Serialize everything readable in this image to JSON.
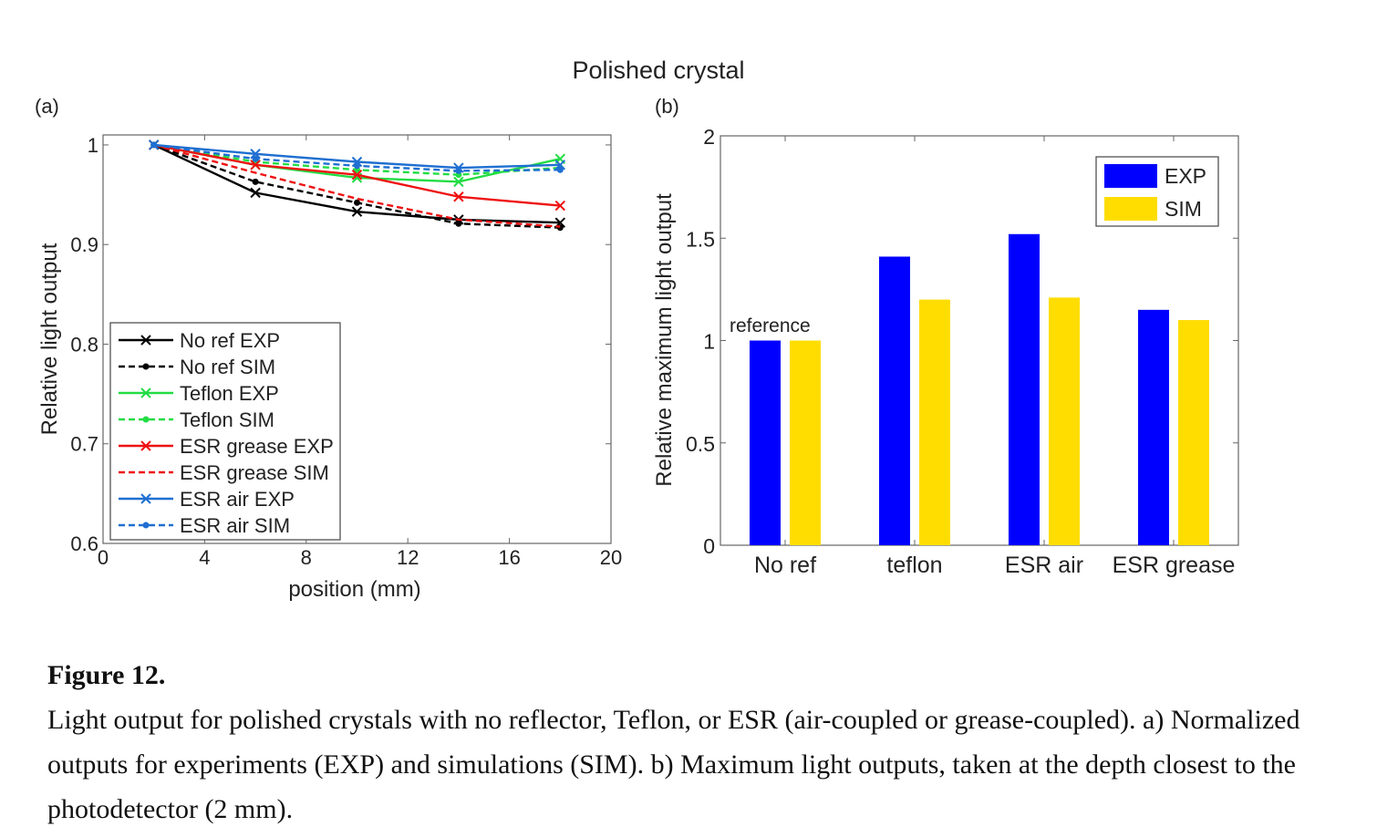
{
  "figure": {
    "title": "Polished crystal",
    "caption_title": "Figure 12.",
    "caption_text": "Light output for polished crystals with no reflector, Teflon, or ESR (air-coupled or grease-coupled). a) Normalized outputs for experiments (EXP) and simulations (SIM). b) Maximum light outputs, taken at the depth closest to the photodetector (2 mm)."
  },
  "chart_data": [
    {
      "type": "line",
      "panel_label": "(a)",
      "xlabel": "position (mm)",
      "ylabel": "Relative light output",
      "xlim": [
        0,
        20
      ],
      "ylim": [
        0.6,
        1.01
      ],
      "xticks": [
        0,
        4,
        8,
        12,
        16,
        20
      ],
      "yticks": [
        0.6,
        0.7,
        0.8,
        0.9,
        1
      ],
      "ytick_labels": [
        "0.6",
        "0.7",
        "0.8",
        "0.9",
        "1"
      ],
      "legend_position": "bottom-left",
      "grid": false,
      "x": [
        2,
        6,
        10,
        14,
        18
      ],
      "series": [
        {
          "name": "No ref EXP",
          "values": [
            1.0,
            0.952,
            0.933,
            0.925,
            0.922
          ],
          "color": "#000000",
          "dashed": false,
          "marker": "x"
        },
        {
          "name": "No ref SIM",
          "values": [
            1.0,
            0.963,
            0.942,
            0.921,
            0.917
          ],
          "color": "#000000",
          "dashed": true,
          "marker": "dot"
        },
        {
          "name": "Teflon EXP",
          "values": [
            1.0,
            0.98,
            0.967,
            0.963,
            0.986
          ],
          "color": "#22dd44",
          "dashed": false,
          "marker": "x"
        },
        {
          "name": "Teflon SIM",
          "values": [
            1.0,
            0.983,
            0.975,
            0.97,
            0.977
          ],
          "color": "#22dd44",
          "dashed": true,
          "marker": "dot"
        },
        {
          "name": "ESR grease EXP",
          "values": [
            1.0,
            0.98,
            0.97,
            0.948,
            0.939
          ],
          "color": "#ee1111",
          "dashed": false,
          "marker": "x"
        },
        {
          "name": "ESR grease SIM",
          "values": [
            1.0,
            0.972,
            0.946,
            0.925,
            0.918
          ],
          "color": "#ee1111",
          "dashed": true,
          "marker": "none"
        },
        {
          "name": "ESR air EXP",
          "values": [
            1.0,
            0.991,
            0.983,
            0.977,
            0.98
          ],
          "color": "#1f6fd1",
          "dashed": false,
          "marker": "x"
        },
        {
          "name": "ESR air SIM",
          "values": [
            1.0,
            0.986,
            0.979,
            0.974,
            0.975
          ],
          "color": "#1f6fd1",
          "dashed": true,
          "marker": "dot"
        }
      ]
    },
    {
      "type": "bar",
      "panel_label": "(b)",
      "xlabel": "",
      "ylabel": "Relative maximum light output",
      "ylim": [
        0,
        2
      ],
      "yticks": [
        0,
        0.5,
        1,
        1.5,
        2
      ],
      "ytick_labels": [
        "0",
        "0.5",
        "1",
        "1.5",
        "2"
      ],
      "categories": [
        "No ref",
        "teflon",
        "ESR air",
        "ESR grease"
      ],
      "legend_position": "top-right",
      "grid": false,
      "annotation": "reference",
      "series": [
        {
          "name": "EXP",
          "values": [
            1.0,
            1.41,
            1.52,
            1.15
          ],
          "color": "#0000ff"
        },
        {
          "name": "SIM",
          "values": [
            1.0,
            1.2,
            1.21,
            1.1
          ],
          "color": "#ffdd00"
        }
      ]
    }
  ]
}
